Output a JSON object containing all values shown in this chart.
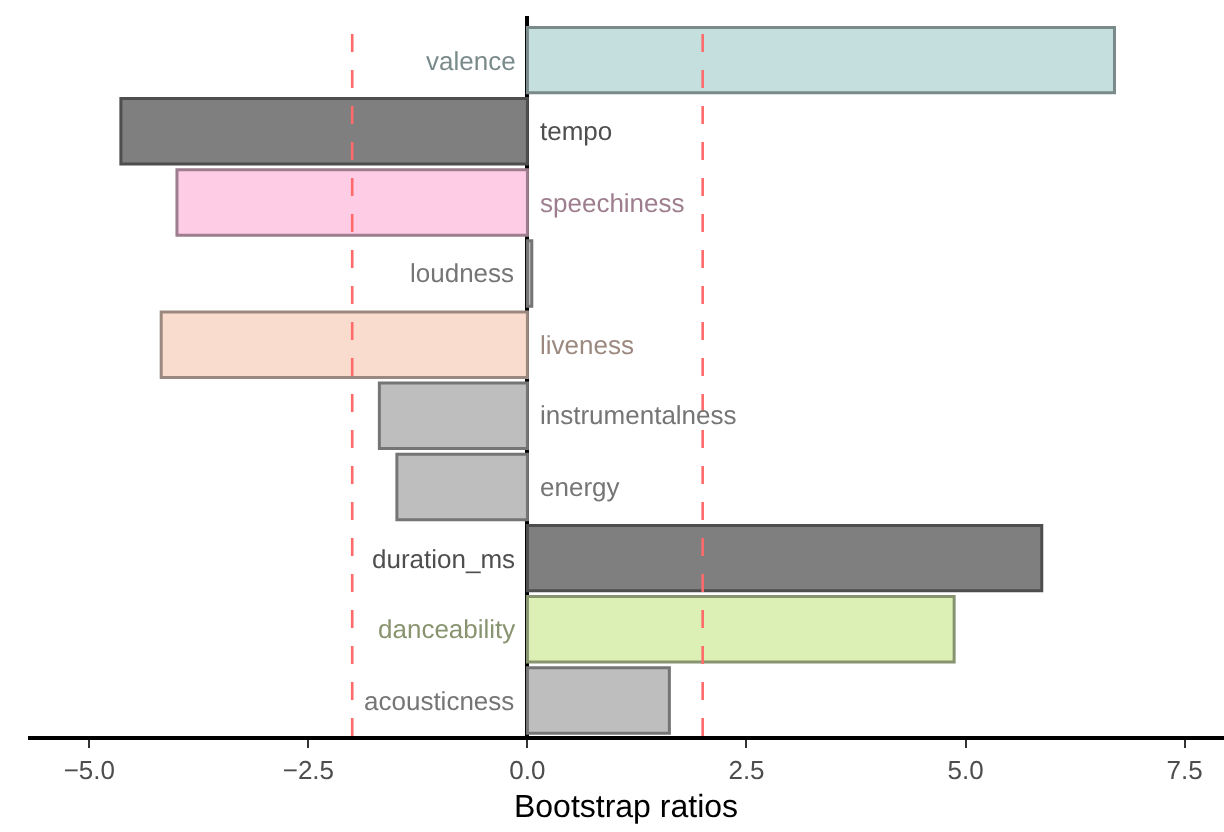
{
  "chart_data": {
    "type": "bar",
    "orientation": "horizontal",
    "xlabel": "Bootstrap ratios",
    "categories": [
      "valence",
      "tempo",
      "speechiness",
      "loudness",
      "liveness",
      "instrumentalness",
      "energy",
      "duration_ms",
      "danceability",
      "acousticness"
    ],
    "values": [
      6.7,
      -4.64,
      -4.0,
      0.05,
      -4.18,
      -1.69,
      -1.49,
      5.87,
      4.87,
      1.62
    ],
    "colors": [
      "#c5dfdf",
      "#7f7f7f",
      "#ffcce6",
      "#bebebe",
      "#fadcce",
      "#bebebe",
      "#bebebe",
      "#7f7f7f",
      "#dcefb4",
      "#bebebe"
    ],
    "xlim": [
      -5.7,
      7.95
    ],
    "xticks": [
      {
        "value": -5,
        "label": "−5.0"
      },
      {
        "value": -2.5,
        "label": "−2.5"
      },
      {
        "value": 0,
        "label": "0.0"
      },
      {
        "value": 2.5,
        "label": "2.5"
      },
      {
        "value": 5,
        "label": "5.0"
      },
      {
        "value": 7.5,
        "label": "7.5"
      }
    ],
    "ref_lines": [
      {
        "axis": "x",
        "value": -2,
        "color": "#ff6a6a",
        "line_style": "dashed"
      },
      {
        "axis": "x",
        "value": 2,
        "color": "#ff6a6a",
        "line_style": "dashed"
      }
    ],
    "legend": false
  }
}
